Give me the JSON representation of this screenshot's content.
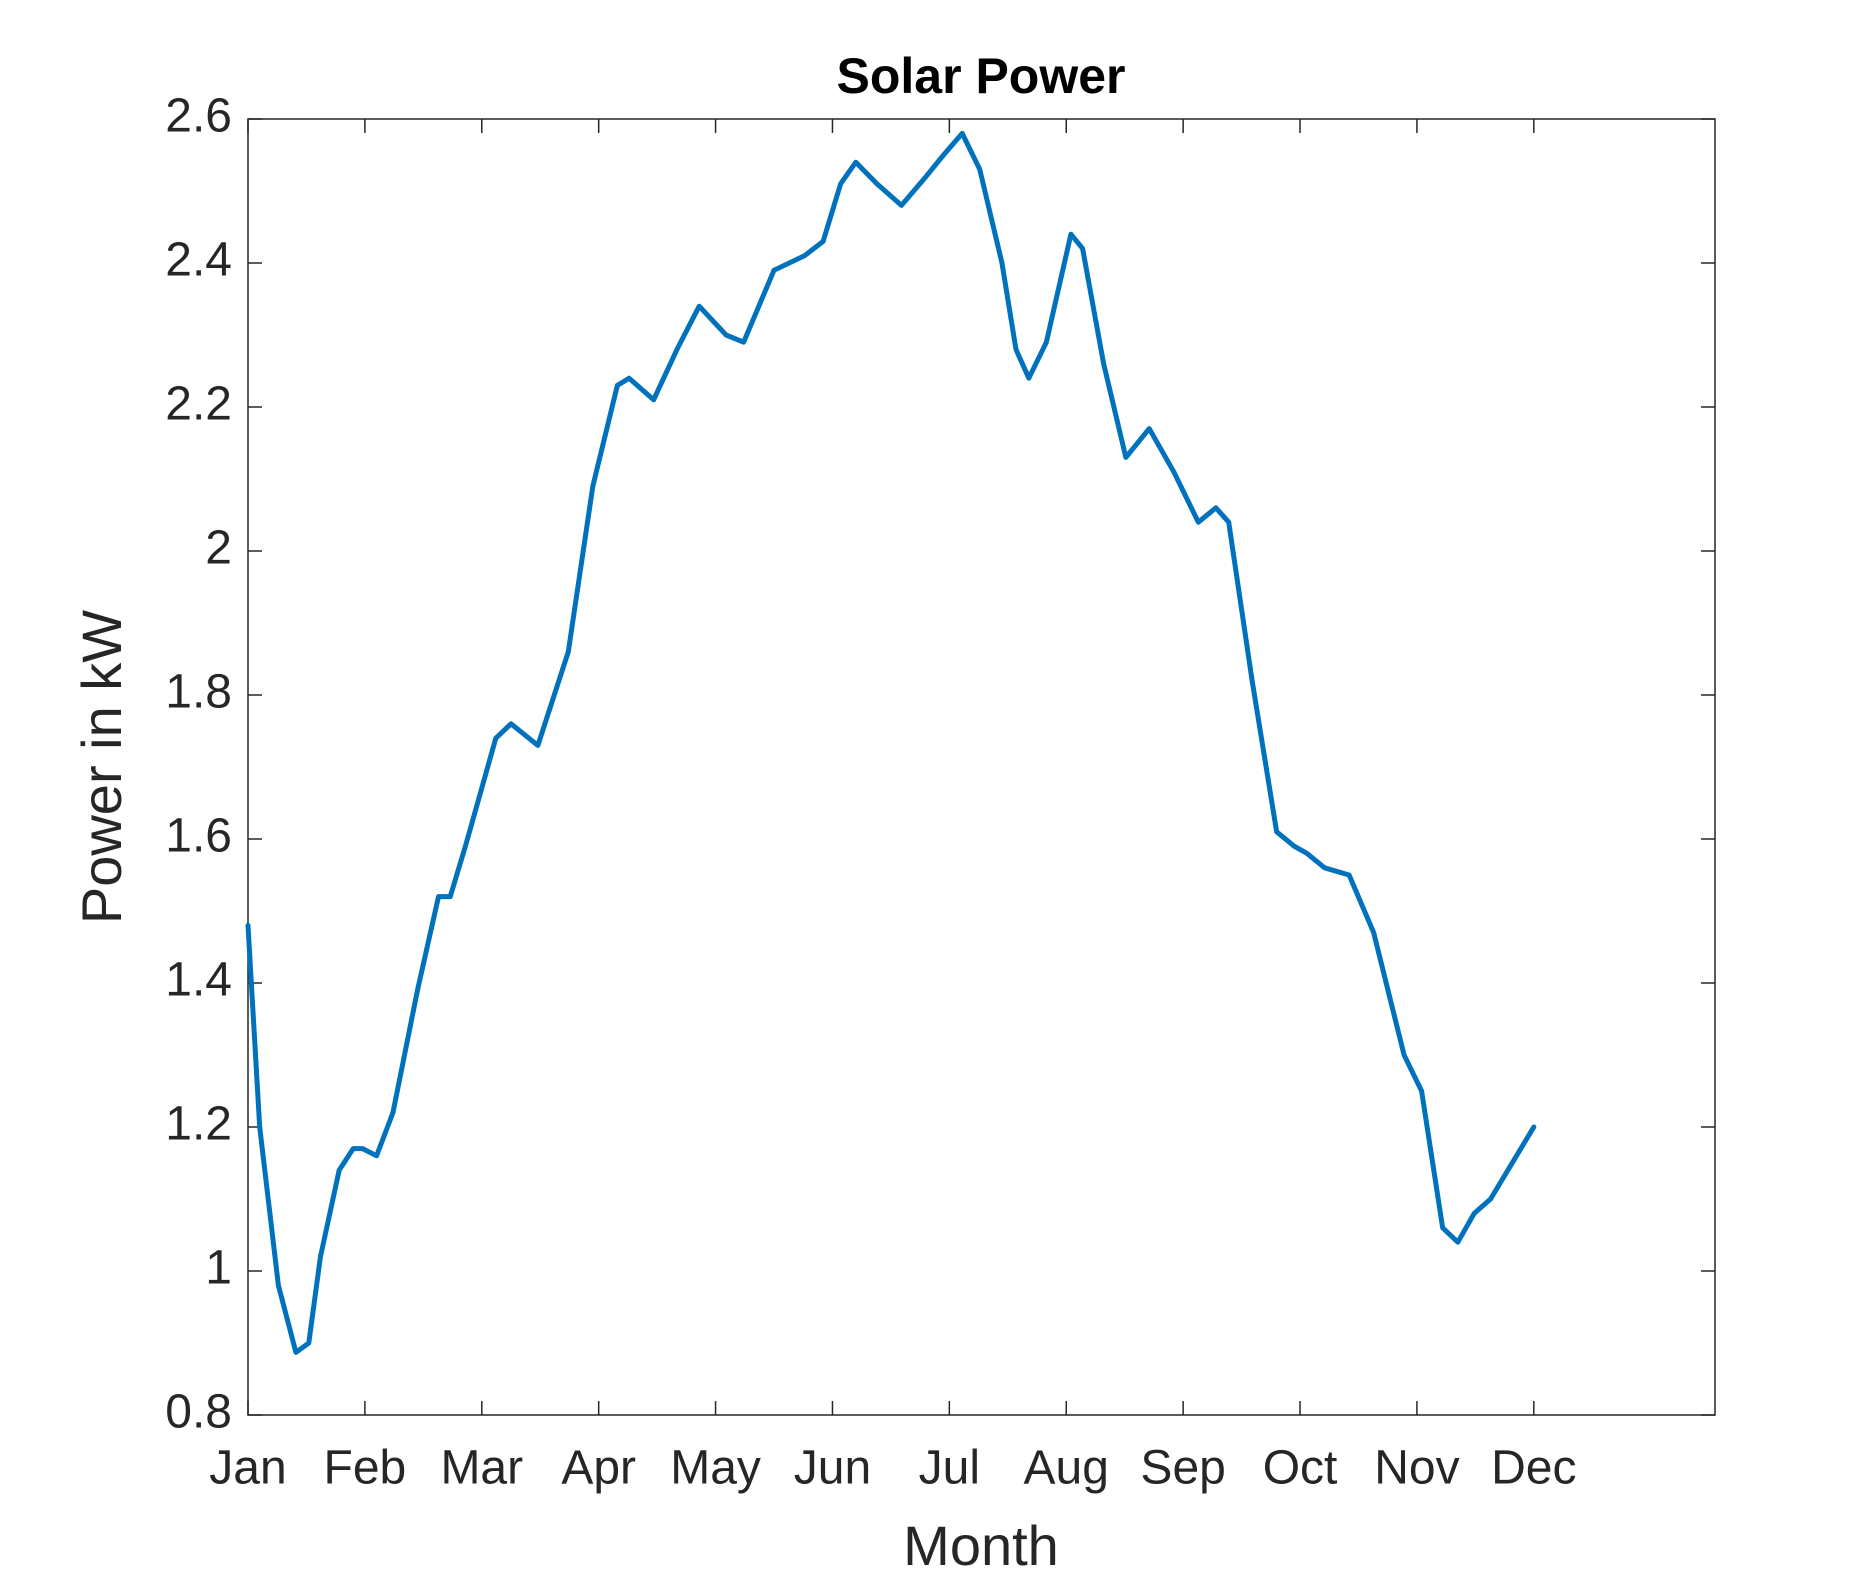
{
  "chart_data": {
    "type": "line",
    "title": "Solar Power",
    "x_label": "Month",
    "y_label": "Power in kW",
    "xlim": [
      0,
      12.55
    ],
    "ylim": [
      0.8,
      2.6
    ],
    "xticks": [
      {
        "value": 0,
        "label": "Jan"
      },
      {
        "value": 1,
        "label": "Feb"
      },
      {
        "value": 2,
        "label": "Mar"
      },
      {
        "value": 3,
        "label": "Apr"
      },
      {
        "value": 4,
        "label": "May"
      },
      {
        "value": 5,
        "label": "Jun"
      },
      {
        "value": 6,
        "label": "Jul"
      },
      {
        "value": 7,
        "label": "Aug"
      },
      {
        "value": 8,
        "label": "Sep"
      },
      {
        "value": 9,
        "label": "Oct"
      },
      {
        "value": 10,
        "label": "Nov"
      },
      {
        "value": 11,
        "label": "Dec"
      }
    ],
    "yticks": [
      0.8,
      1,
      1.2,
      1.4,
      1.6,
      1.8,
      2,
      2.2,
      2.4,
      2.6
    ],
    "grid": false,
    "series": [
      {
        "color": "#0072bd",
        "x": [
          0,
          0.1,
          0.26,
          0.41,
          0.52,
          0.62,
          0.78,
          0.9,
          0.98,
          1.1,
          1.24,
          1.45,
          1.63,
          1.73,
          1.86,
          2.12,
          2.25,
          2.48,
          2.74,
          2.95,
          3.16,
          3.26,
          3.47,
          3.67,
          3.86,
          4.09,
          4.24,
          4.5,
          4.76,
          4.92,
          5.07,
          5.2,
          5.38,
          5.59,
          5.8,
          5.95,
          6.11,
          6.26,
          6.45,
          6.57,
          6.68,
          6.83,
          7.04,
          7.14,
          7.32,
          7.51,
          7.71,
          7.92,
          8.13,
          8.28,
          8.39,
          8.59,
          8.8,
          8.95,
          9.06,
          9.21,
          9.42,
          9.63,
          9.89,
          10.04,
          10.22,
          10.35,
          10.49,
          10.63,
          11
        ],
        "values": [
          1.48,
          1.2,
          0.98,
          0.887,
          0.9,
          1.02,
          1.14,
          1.17,
          1.17,
          1.16,
          1.22,
          1.39,
          1.52,
          1.52,
          1.59,
          1.74,
          1.76,
          1.73,
          1.86,
          2.09,
          2.23,
          2.24,
          2.21,
          2.28,
          2.34,
          2.3,
          2.29,
          2.39,
          2.41,
          2.43,
          2.51,
          2.54,
          2.51,
          2.48,
          2.52,
          2.55,
          2.58,
          2.53,
          2.4,
          2.28,
          2.24,
          2.29,
          2.44,
          2.42,
          2.26,
          2.13,
          2.17,
          2.11,
          2.04,
          2.06,
          2.04,
          1.82,
          1.61,
          1.59,
          1.58,
          1.56,
          1.55,
          1.47,
          1.3,
          1.25,
          1.06,
          1.04,
          1.08,
          1.1,
          1.2
        ]
      }
    ]
  }
}
